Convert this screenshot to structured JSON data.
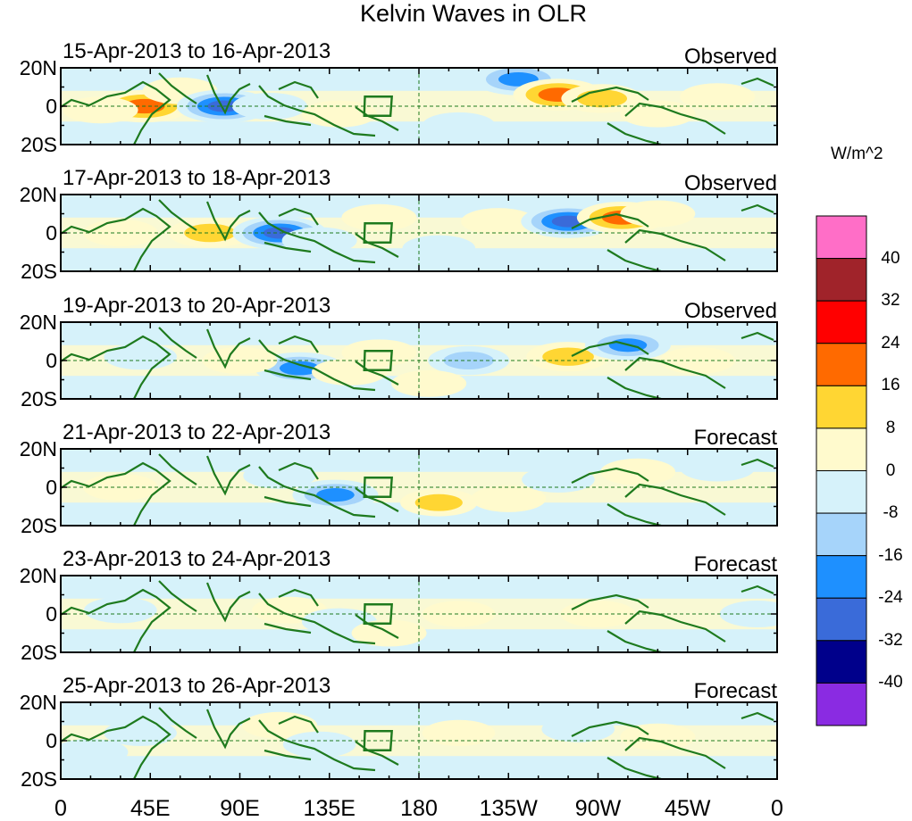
{
  "chart_data": {
    "type": "heatmap",
    "title": "Kelvin Waves in OLR",
    "xlabel": "",
    "ylabel": "",
    "x_tick_labels": [
      "0",
      "45E",
      "90E",
      "135E",
      "180",
      "135W",
      "90W",
      "45W",
      "0"
    ],
    "y_tick_labels": [
      "20N",
      "0",
      "20S"
    ],
    "x_range": [
      0,
      360
    ],
    "y_range": [
      -20,
      20
    ],
    "colorbar": {
      "units": "W/m^2",
      "levels": [
        "40",
        "32",
        "24",
        "16",
        "8",
        "0",
        "-8",
        "-16",
        "-24",
        "-32",
        "-40"
      ],
      "colors": [
        "#ff6ec7",
        "#a0232a",
        "#ff0000",
        "#ff6a00",
        "#ffd633",
        "#fffacd",
        "#d6f2fa",
        "#a6d4fa",
        "#1e90ff",
        "#3a6bd9",
        "#00008b",
        "#8a2be2"
      ]
    },
    "panels": [
      {
        "dates": "15-Apr-2013 to 16-Apr-2013",
        "status": "Observed",
        "anomalies": [
          {
            "lon": 42,
            "lat": 0,
            "value": 26
          },
          {
            "lon": 20,
            "lat": -2,
            "value": 10
          },
          {
            "lon": 60,
            "lat": 8,
            "value": 10
          },
          {
            "lon": 82,
            "lat": 0,
            "value": -28
          },
          {
            "lon": 105,
            "lat": 0,
            "value": -10
          },
          {
            "lon": 140,
            "lat": -4,
            "value": 10
          },
          {
            "lon": 230,
            "lat": 14,
            "value": -24
          },
          {
            "lon": 250,
            "lat": 6,
            "value": 24
          },
          {
            "lon": 272,
            "lat": 4,
            "value": 16
          },
          {
            "lon": 300,
            "lat": -4,
            "value": 10
          },
          {
            "lon": 200,
            "lat": -10,
            "value": -8
          },
          {
            "lon": 330,
            "lat": 5,
            "value": 10
          }
        ]
      },
      {
        "dates": "17-Apr-2013 to 18-Apr-2013",
        "status": "Observed",
        "anomalies": [
          {
            "lon": 75,
            "lat": 0,
            "value": 18
          },
          {
            "lon": 110,
            "lat": 0,
            "value": -28
          },
          {
            "lon": 130,
            "lat": -4,
            "value": -10
          },
          {
            "lon": 160,
            "lat": 8,
            "value": 10
          },
          {
            "lon": 220,
            "lat": 6,
            "value": 10
          },
          {
            "lon": 255,
            "lat": 6,
            "value": -28
          },
          {
            "lon": 282,
            "lat": 8,
            "value": 24
          },
          {
            "lon": 300,
            "lat": 10,
            "value": 10
          },
          {
            "lon": 30,
            "lat": 0,
            "value": 10
          },
          {
            "lon": 190,
            "lat": -8,
            "value": -8
          }
        ]
      },
      {
        "dates": "19-Apr-2013 to 20-Apr-2013",
        "status": "Observed",
        "anomalies": [
          {
            "lon": 120,
            "lat": -4,
            "value": -24
          },
          {
            "lon": 145,
            "lat": -6,
            "value": 10
          },
          {
            "lon": 90,
            "lat": 0,
            "value": 10
          },
          {
            "lon": 160,
            "lat": 4,
            "value": 10
          },
          {
            "lon": 205,
            "lat": 0,
            "value": -16
          },
          {
            "lon": 255,
            "lat": 2,
            "value": 18
          },
          {
            "lon": 285,
            "lat": 8,
            "value": -20
          },
          {
            "lon": 40,
            "lat": 2,
            "value": -8
          },
          {
            "lon": 320,
            "lat": 0,
            "value": 10
          },
          {
            "lon": 185,
            "lat": -12,
            "value": 10
          }
        ]
      },
      {
        "dates": "21-Apr-2013 to 22-Apr-2013",
        "status": "Forecast",
        "anomalies": [
          {
            "lon": 138,
            "lat": -4,
            "value": -20
          },
          {
            "lon": 190,
            "lat": -8,
            "value": 12
          },
          {
            "lon": 225,
            "lat": -6,
            "value": 10
          },
          {
            "lon": 250,
            "lat": 4,
            "value": -8
          },
          {
            "lon": 290,
            "lat": 8,
            "value": 10
          },
          {
            "lon": 30,
            "lat": 0,
            "value": 10
          },
          {
            "lon": 110,
            "lat": 6,
            "value": -8
          },
          {
            "lon": 330,
            "lat": 10,
            "value": -10
          }
        ]
      },
      {
        "dates": "23-Apr-2013 to 24-Apr-2013",
        "status": "Forecast",
        "anomalies": [
          {
            "lon": 115,
            "lat": 2,
            "value": 10
          },
          {
            "lon": 140,
            "lat": -4,
            "value": -10
          },
          {
            "lon": 200,
            "lat": 0,
            "value": 8
          },
          {
            "lon": 270,
            "lat": 0,
            "value": 10
          },
          {
            "lon": 30,
            "lat": 2,
            "value": -8
          },
          {
            "lon": 350,
            "lat": 0,
            "value": -10
          },
          {
            "lon": 165,
            "lat": -10,
            "value": 10
          }
        ]
      },
      {
        "dates": "25-Apr-2013 to 26-Apr-2013",
        "status": "Forecast",
        "anomalies": [
          {
            "lon": 110,
            "lat": 8,
            "value": 10
          },
          {
            "lon": 40,
            "lat": 4,
            "value": -8
          },
          {
            "lon": 130,
            "lat": -2,
            "value": -8
          },
          {
            "lon": 200,
            "lat": 4,
            "value": 8
          },
          {
            "lon": 260,
            "lat": 6,
            "value": -8
          },
          {
            "lon": 300,
            "lat": 2,
            "value": 10
          },
          {
            "lon": 15,
            "lat": -6,
            "value": -10
          }
        ]
      }
    ]
  }
}
